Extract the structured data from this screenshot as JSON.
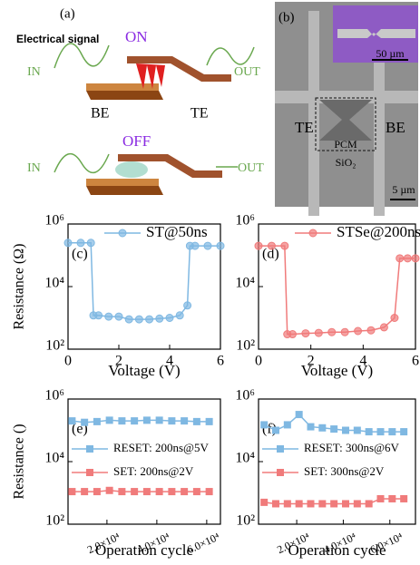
{
  "panel_a": {
    "label": "(a)",
    "signal": "Electrical signal",
    "on": "ON",
    "off": "OFF",
    "in_on": "IN",
    "out_on": "OUT",
    "be": "BE",
    "te": "TE",
    "in_off": "IN",
    "out_off": "OUT"
  },
  "panel_b": {
    "label": "(b)",
    "inset_scale": "50 µm",
    "te": "TE",
    "be": "BE",
    "pcm": "PCM",
    "substrate": "SiO₂",
    "scale": "5 µm"
  },
  "chart_data": [
    {
      "type": "line",
      "panel_label": "(c)",
      "xlabel": "Voltage (V)",
      "ylabel": "Resistance (Ω)",
      "log_y": true,
      "legend": "upper right",
      "xlim": [
        0,
        6
      ],
      "xticks": [
        0,
        2,
        4,
        6
      ],
      "ylim": [
        100,
        1000000
      ],
      "yticks": [
        {
          "value": 100,
          "label": "10²"
        },
        {
          "value": 10000,
          "label": "10⁴"
        },
        {
          "value": 1000000,
          "label": "10⁶"
        }
      ],
      "x": [
        0,
        0.5,
        0.9,
        1.0,
        1.2,
        1.6,
        2.0,
        2.4,
        2.8,
        3.2,
        3.6,
        4.0,
        4.4,
        4.7,
        4.8,
        5.0,
        5.5,
        6.0
      ],
      "series": [
        {
          "name": "ST@50ns",
          "color": "#7fb8e2",
          "marker": "circle",
          "values": [
            250000,
            250000,
            250000,
            1200,
            1200,
            1100,
            1100,
            900,
            900,
            900,
            950,
            1000,
            1200,
            2500,
            200000,
            200000,
            200000,
            200000
          ]
        }
      ]
    },
    {
      "type": "line",
      "panel_label": "(d)",
      "xlabel": "Voltage (V)",
      "log_y": true,
      "legend": "upper right",
      "xlim": [
        0,
        6
      ],
      "xticks": [
        0,
        2,
        4,
        6
      ],
      "ylim": [
        100,
        1000000
      ],
      "yticks": [
        {
          "value": 100,
          "label": "10²"
        },
        {
          "value": 10000,
          "label": "10⁴"
        },
        {
          "value": 1000000,
          "label": "10⁶"
        }
      ],
      "x": [
        0,
        0.5,
        1.0,
        1.1,
        1.3,
        1.8,
        2.3,
        2.8,
        3.3,
        3.8,
        4.3,
        4.8,
        5.2,
        5.4,
        5.7,
        6.0
      ],
      "series": [
        {
          "name": "STSe@200ns",
          "color": "#f07b7b",
          "marker": "circle",
          "values": [
            200000,
            200000,
            200000,
            300,
            300,
            320,
            330,
            350,
            350,
            380,
            400,
            500,
            1000,
            80000,
            80000,
            80000
          ]
        }
      ]
    },
    {
      "type": "line",
      "panel_label": "(e)",
      "xlabel": "Operation cycle",
      "ylabel": "Resistance ()",
      "log_y": true,
      "legend": "center left",
      "xlim": [
        4400,
        65500
      ],
      "xticks": [
        {
          "value": 20000,
          "label": "2.0×10⁴"
        },
        {
          "value": 40000,
          "label": "4.0×10⁴"
        },
        {
          "value": 60000,
          "label": "6.0×10⁴"
        }
      ],
      "ylim": [
        100,
        1000000
      ],
      "yticks": [
        {
          "value": 100,
          "label": "10²"
        },
        {
          "value": 10000,
          "label": "10⁴"
        },
        {
          "value": 1000000,
          "label": "10⁶"
        }
      ],
      "x": [
        6000,
        11000,
        16000,
        21000,
        26000,
        31000,
        36000,
        41000,
        46000,
        51000,
        56000,
        61000
      ],
      "series": [
        {
          "name": "RESET: 200ns@5V",
          "color": "#7fb8e2",
          "marker": "square",
          "values": [
            200000,
            180000,
            190000,
            210000,
            200000,
            200000,
            210000,
            210000,
            200000,
            200000,
            190000,
            190000
          ]
        },
        {
          "name": "SET: 200ns@2V",
          "color": "#f07b7b",
          "marker": "square",
          "values": [
            1100,
            1100,
            1100,
            1200,
            1100,
            1100,
            1100,
            1100,
            1100,
            1100,
            1100,
            1100
          ]
        }
      ]
    },
    {
      "type": "line",
      "panel_label": "(f)",
      "xlabel": "Operation cycle",
      "log_y": true,
      "legend": "center left",
      "xlim": [
        3600,
        71000
      ],
      "xticks": [
        {
          "value": 20000,
          "label": "2.0×10⁴"
        },
        {
          "value": 40000,
          "label": "4.0×10⁴"
        },
        {
          "value": 60000,
          "label": "6.0×10⁴"
        }
      ],
      "ylim": [
        100,
        1000000
      ],
      "yticks": [
        {
          "value": 100,
          "label": "10²"
        },
        {
          "value": 10000,
          "label": "10⁴"
        },
        {
          "value": 1000000,
          "label": "10⁶"
        }
      ],
      "x": [
        6000,
        11000,
        16000,
        21000,
        26000,
        31000,
        36000,
        41000,
        46000,
        51000,
        56000,
        61000,
        66000
      ],
      "series": [
        {
          "name": "RESET: 300ns@6V",
          "color": "#7fb8e2",
          "marker": "square",
          "values": [
            150000,
            100000,
            150000,
            320000,
            130000,
            120000,
            110000,
            100000,
            100000,
            90000,
            90000,
            90000,
            90000
          ]
        },
        {
          "name": "SET: 300ns@2V",
          "color": "#f07b7b",
          "marker": "square",
          "values": [
            500,
            450,
            450,
            450,
            450,
            450,
            450,
            450,
            450,
            450,
            650,
            650,
            650
          ]
        }
      ]
    }
  ]
}
